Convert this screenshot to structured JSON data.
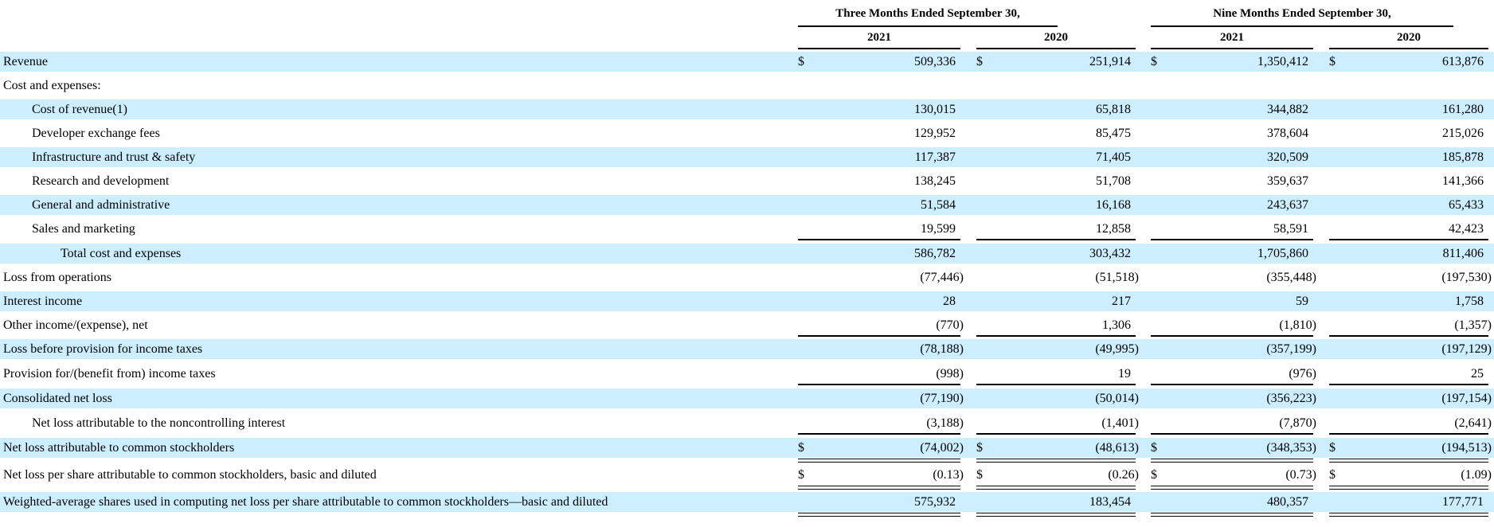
{
  "headers": {
    "group1": "Three Months Ended September 30,",
    "group2": "Nine Months Ended September 30,",
    "years": [
      "2021",
      "2020",
      "2021",
      "2020"
    ]
  },
  "rows": [
    {
      "label": "Revenue",
      "indent": 0,
      "dollar": true,
      "values": [
        "509,336",
        "251,914",
        "1,350,412",
        "613,876"
      ]
    },
    {
      "label": "Cost and expenses:",
      "indent": 0,
      "dollar": false,
      "values": [
        "",
        "",
        "",
        ""
      ]
    },
    {
      "label": "Cost of revenue(1)",
      "indent": 1,
      "dollar": false,
      "values": [
        "130,015",
        "65,818",
        "344,882",
        "161,280"
      ]
    },
    {
      "label": "Developer exchange fees",
      "indent": 1,
      "dollar": false,
      "values": [
        "129,952",
        "85,475",
        "378,604",
        "215,026"
      ]
    },
    {
      "label": "Infrastructure and trust & safety",
      "indent": 1,
      "dollar": false,
      "values": [
        "117,387",
        "71,405",
        "320,509",
        "185,878"
      ]
    },
    {
      "label": "Research and development",
      "indent": 1,
      "dollar": false,
      "values": [
        "138,245",
        "51,708",
        "359,637",
        "141,366"
      ]
    },
    {
      "label": "General and administrative",
      "indent": 1,
      "dollar": false,
      "values": [
        "51,584",
        "16,168",
        "243,637",
        "65,433"
      ]
    },
    {
      "label": "Sales and marketing",
      "indent": 1,
      "dollar": false,
      "values": [
        "19,599",
        "12,858",
        "58,591",
        "42,423"
      ]
    },
    {
      "label": "Total cost and expenses",
      "indent": 2,
      "dollar": false,
      "values": [
        "586,782",
        "303,432",
        "1,705,860",
        "811,406"
      ]
    },
    {
      "label": "Loss from operations",
      "indent": 0,
      "dollar": false,
      "values": [
        "(77,446)",
        "(51,518)",
        "(355,448)",
        "(197,530)"
      ]
    },
    {
      "label": "Interest income",
      "indent": 0,
      "dollar": false,
      "values": [
        "28",
        "217",
        "59",
        "1,758"
      ]
    },
    {
      "label": "Other income/(expense), net",
      "indent": 0,
      "dollar": false,
      "values": [
        "(770)",
        "1,306",
        "(1,810)",
        "(1,357)"
      ]
    },
    {
      "label": "Loss before provision for income taxes",
      "indent": 0,
      "dollar": false,
      "values": [
        "(78,188)",
        "(49,995)",
        "(357,199)",
        "(197,129)"
      ]
    },
    {
      "label": "Provision for/(benefit from) income taxes",
      "indent": 0,
      "dollar": false,
      "values": [
        "(998)",
        "19",
        "(976)",
        "25"
      ]
    },
    {
      "label": "Consolidated net loss",
      "indent": 0,
      "dollar": false,
      "values": [
        "(77,190)",
        "(50,014)",
        "(356,223)",
        "(197,154)"
      ]
    },
    {
      "label": "Net loss attributable to the noncontrolling interest",
      "indent": 1,
      "dollar": false,
      "values": [
        "(3,188)",
        "(1,401)",
        "(7,870)",
        "(2,641)"
      ]
    },
    {
      "label": "Net loss attributable to common stockholders",
      "indent": 0,
      "dollar": true,
      "values": [
        "(74,002)",
        "(48,613)",
        "(348,353)",
        "(194,513)"
      ]
    },
    {
      "label": "Net loss per share attributable to common stockholders, basic and diluted",
      "indent": 0,
      "dollar": true,
      "values": [
        "(0.13)",
        "(0.26)",
        "(0.73)",
        "(1.09)"
      ]
    },
    {
      "label": "Weighted-average shares used in computing net loss per share attributable to common stockholders—basic and diluted",
      "indent": 0,
      "dollar": false,
      "values": [
        "575,932",
        "183,454",
        "480,357",
        "177,771"
      ]
    }
  ],
  "currency_symbol": "$",
  "colors": {
    "shade": "#cceeff"
  }
}
